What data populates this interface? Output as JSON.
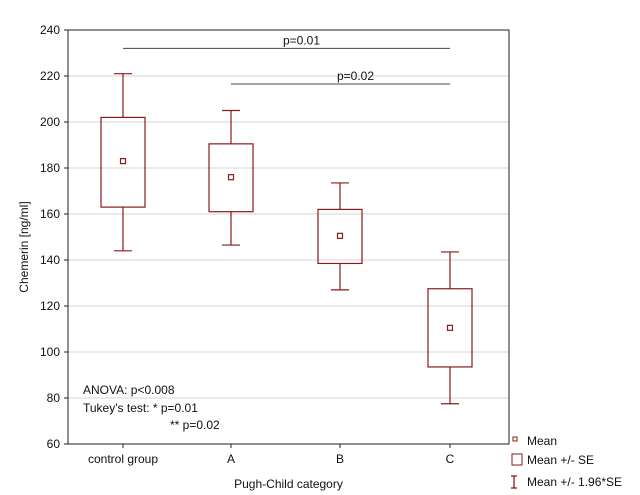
{
  "chart_data": {
    "type": "box",
    "xlabel": "Pugh-Child category",
    "ylabel": "Chemerin [ng/ml]",
    "ylim": [
      60,
      240
    ],
    "yticks": [
      60,
      80,
      100,
      120,
      140,
      160,
      180,
      200,
      220,
      240
    ],
    "grid": true,
    "categories": [
      "control group",
      "A",
      "B",
      "C"
    ],
    "series": [
      {
        "category": "control group",
        "mean": 183,
        "se_low": 163,
        "se_high": 202,
        "ci_low": 144,
        "ci_high": 221
      },
      {
        "category": "A",
        "mean": 176,
        "se_low": 161,
        "se_high": 190.5,
        "ci_low": 146.5,
        "ci_high": 205
      },
      {
        "category": "B",
        "mean": 150.5,
        "se_low": 138.5,
        "se_high": 162,
        "ci_low": 127,
        "ci_high": 173.5
      },
      {
        "category": "C",
        "mean": 110.5,
        "se_low": 93.5,
        "se_high": 127.5,
        "ci_low": 77.5,
        "ci_high": 143.5
      }
    ],
    "significance": [
      {
        "from": "control group",
        "to": "C",
        "y": 232,
        "label": "p=0.01"
      },
      {
        "from": "A",
        "to": "C",
        "y": 216.5,
        "label": "p=0.02"
      }
    ],
    "annotations": [
      "ANOVA: p<0.008",
      "Tukey's test: * p=0.01",
      "** p=0.02"
    ],
    "legend": {
      "placement": "bottom-right",
      "items": [
        {
          "marker": "mean",
          "label": "Mean"
        },
        {
          "marker": "box",
          "label": "Mean +/- SE"
        },
        {
          "marker": "whisker",
          "label": "Mean +/- 1.96*SE"
        }
      ]
    },
    "colors": {
      "series": "#8b1a1a",
      "grid": "#d4d4d4",
      "axis": "#222222"
    }
  }
}
